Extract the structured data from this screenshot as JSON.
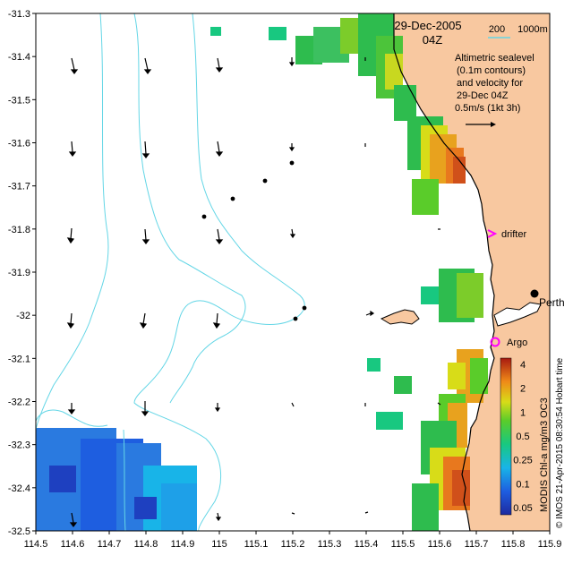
{
  "map": {
    "date_title": "29-Dec-2005",
    "time_title": "04Z",
    "scale_bar_label": "200",
    "scale_bar_unit_label": "1000m",
    "legend_lines": [
      "Altimetric sealevel",
      "(0.1m contours)",
      "and velocity for",
      "29-Dec 04Z",
      "0.5m/s (1kt 3h)"
    ],
    "places": {
      "perth": "Perth",
      "argo": "Argo",
      "drifter": "drifter"
    },
    "credit": "© IMOS 21-Apr-2015 08:30:54 Hobart time",
    "colorbar": {
      "label": "MODIS Chl-a mg/m3 OC3",
      "ticks": [
        "4",
        "2",
        "1",
        "0.5",
        "0.25",
        "0.1",
        "0.05"
      ]
    },
    "axes": {
      "lat_labels": [
        "-31.3",
        "-31.4",
        "-31.5",
        "-31.6",
        "-31.7",
        "-31.8",
        "-31.9",
        "-32",
        "-32.1",
        "-32.2",
        "-32.3",
        "-32.4",
        "-32.5"
      ],
      "lon_labels": [
        "114.5",
        "114.6",
        "114.7",
        "114.8",
        "114.9",
        "115",
        "115.1",
        "115.2",
        "115.3",
        "115.4",
        "115.5",
        "115.6",
        "115.7",
        "115.8",
        "115.9"
      ],
      "lat_range": [
        -32.5,
        -31.3
      ],
      "lon_range": [
        114.5,
        115.9
      ]
    },
    "colors": {
      "land": "#f8c8a0",
      "contour": "#64d6e6",
      "high_chl": "#e8781e",
      "mid_chl": "#2ebc4e",
      "low_chl": "#2a7ae0",
      "drifter_marker": "#ff00ff",
      "argo_marker": "#ff00ff"
    }
  }
}
